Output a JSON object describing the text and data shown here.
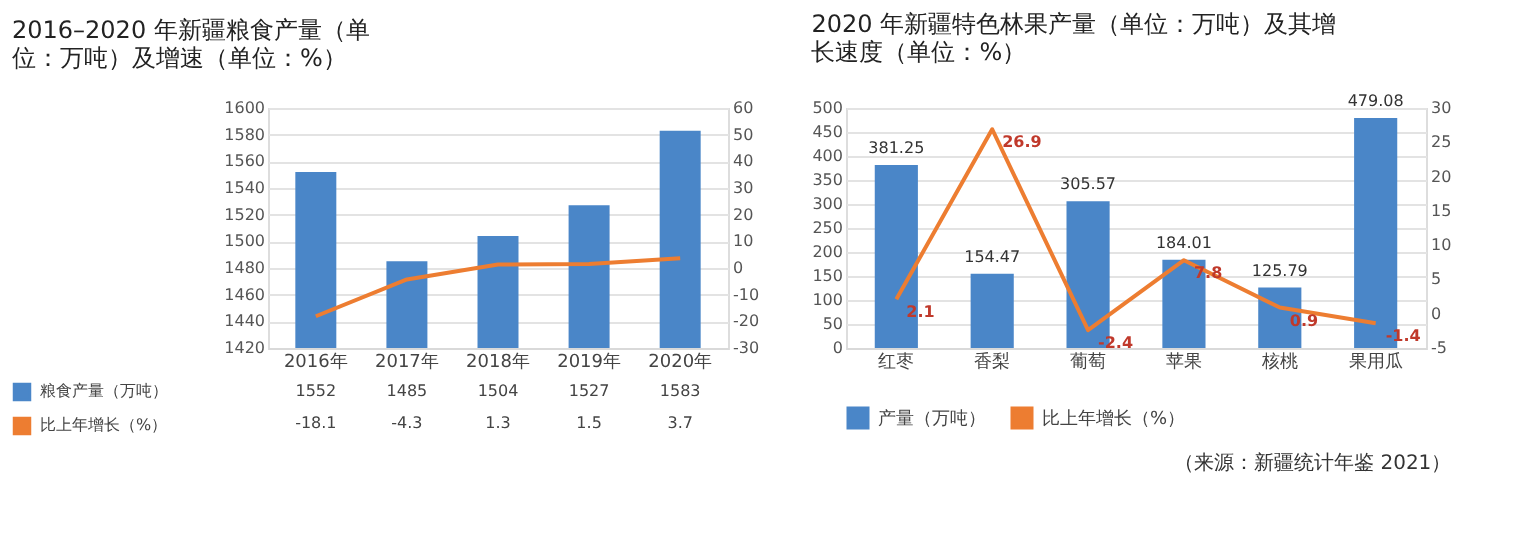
{
  "chart_data": [
    {
      "type": "bar",
      "title": "2016–2020 年新疆粮食产量（单位：万吨）及增速（单位：%）",
      "categories": [
        "2016年",
        "2017年",
        "2018年",
        "2019年",
        "2020年"
      ],
      "series": [
        {
          "name": "粮食产量（万吨）",
          "color": "#4a86c8",
          "values": [
            1552,
            1485,
            1504,
            1527,
            1583
          ]
        },
        {
          "name": "比上年增长（%）",
          "type": "line",
          "axis": "y2",
          "color": "#ed7d31",
          "values": [
            -18.1,
            -4.3,
            1.3,
            1.5,
            3.7
          ]
        }
      ],
      "ylim": [
        1420,
        1600
      ],
      "yticks": [
        1420,
        1440,
        1460,
        1480,
        1500,
        1520,
        1540,
        1560,
        1580,
        1600
      ],
      "y2lim": [
        -30,
        60
      ],
      "y2ticks": [
        -30,
        -20,
        -10,
        0,
        10,
        20,
        30,
        40,
        50,
        60
      ],
      "grid": "y",
      "legend": "bottom left",
      "data_labels": true
    },
    {
      "type": "bar",
      "title": "2020 年新疆特色林果产量（单位：万吨）及其增长速度（单位：%）",
      "categories": [
        "红枣",
        "香梨",
        "葡萄",
        "苹果",
        "核桃",
        "果用瓜"
      ],
      "series": [
        {
          "name": "产量（万吨）",
          "color": "#4a86c8",
          "values": [
            381.25,
            154.47,
            305.57,
            184.01,
            125.79,
            479.08
          ]
        },
        {
          "name": "比上年增长（%）",
          "type": "line",
          "axis": "y2",
          "color": "#ed7d31",
          "values": [
            2.1,
            26.9,
            -2.4,
            7.8,
            0.9,
            -1.4
          ]
        }
      ],
      "ylim": [
        0,
        500
      ],
      "yticks": [
        0,
        50,
        100,
        150,
        200,
        250,
        300,
        350,
        400,
        450,
        500
      ],
      "y2lim": [
        -5,
        30
      ],
      "y2ticks": [
        -5,
        0,
        5,
        10,
        15,
        20,
        25,
        30
      ],
      "grid": "y",
      "legend": "bottom",
      "data_labels": true,
      "annotations": [
        "（来源：新疆统计年鉴 2021）"
      ]
    }
  ]
}
